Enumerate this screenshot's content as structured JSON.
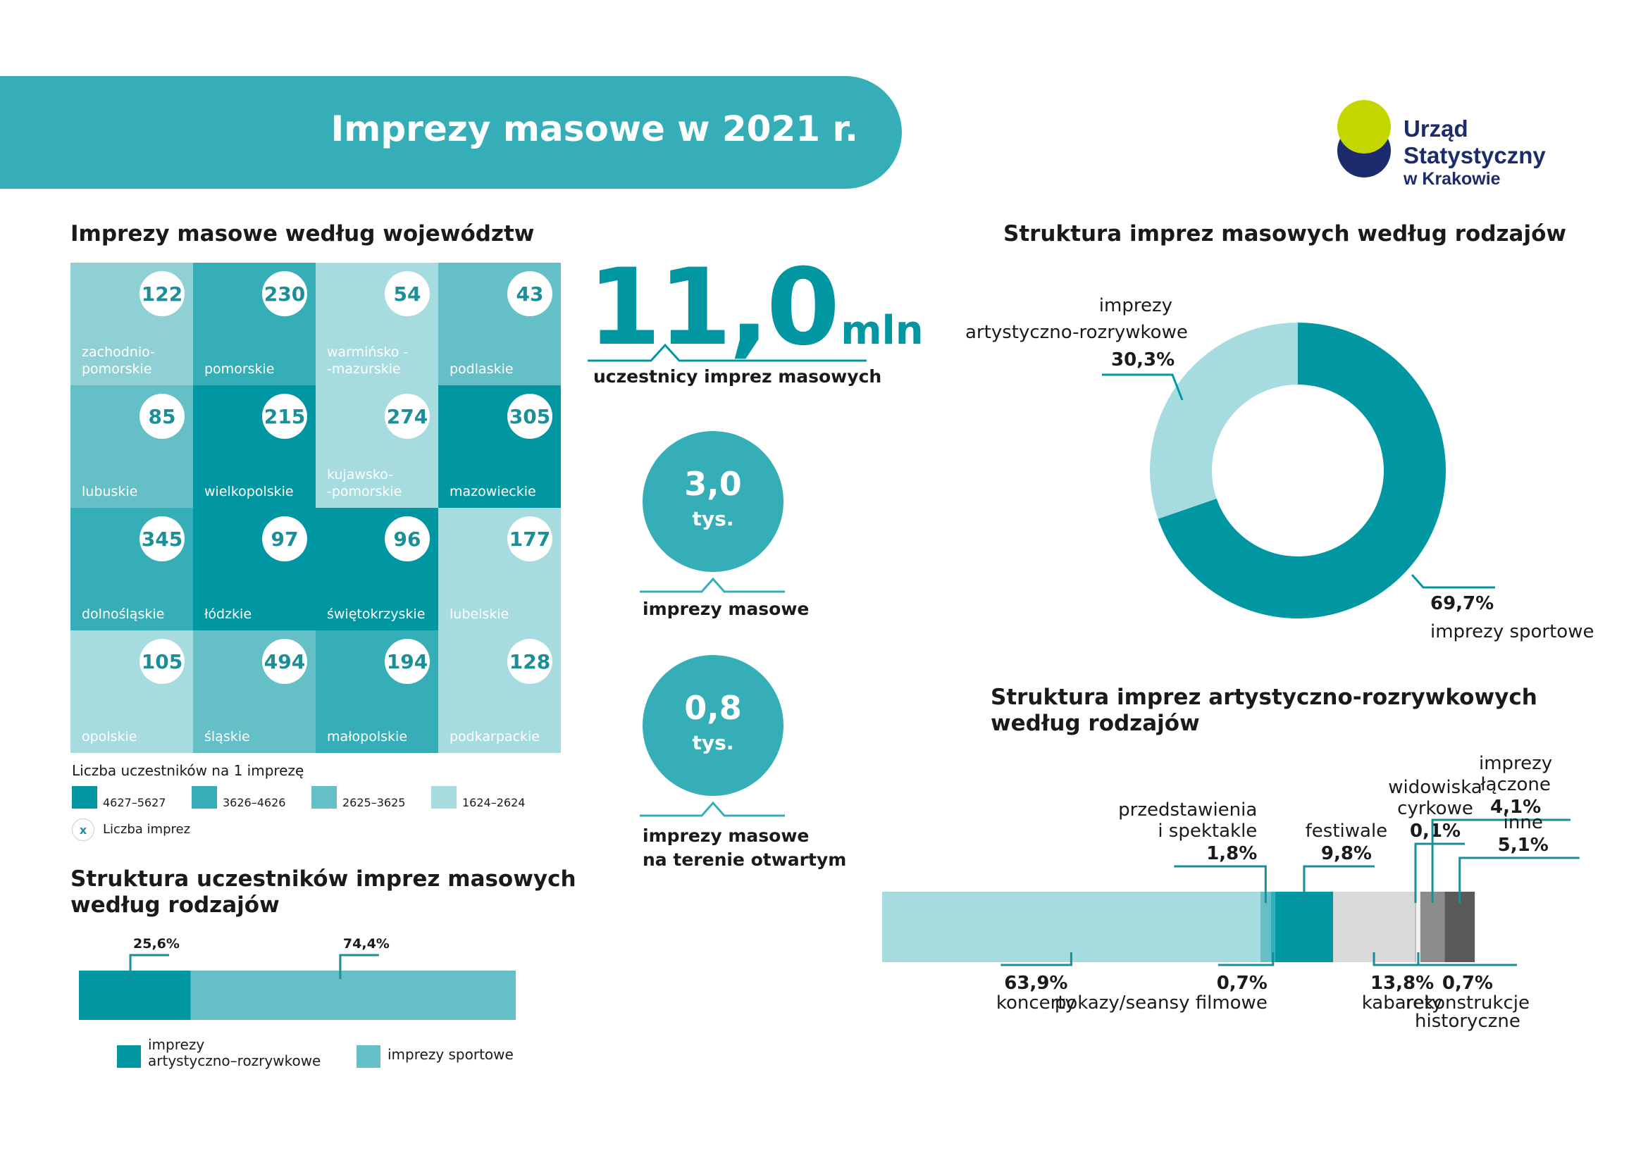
{
  "header": {
    "title": "Imprezy masowe w 2021 r."
  },
  "logo": {
    "line1": "Urząd Statystyczny",
    "line2": "w Krakowie",
    "colors": [
      "#c4d600",
      "#1b2b6b"
    ]
  },
  "map": {
    "title": "Imprezy masowe według województw",
    "tiles": [
      {
        "name": "zachodnio-\npomorskie",
        "value": "122",
        "color": "#8fd0d5"
      },
      {
        "name": "pomorskie",
        "value": "230",
        "color": "#36aeb7"
      },
      {
        "name": "warmińsko -\n-mazurskie",
        "value": "54",
        "color": "#a6dbdf"
      },
      {
        "name": "podlaskie",
        "value": "43",
        "color": "#64bfc6"
      },
      {
        "name": "lubuskie",
        "value": "85",
        "color": "#64bfc6"
      },
      {
        "name": "wielkopolskie",
        "value": "215",
        "color": "#0097a3"
      },
      {
        "name": "kujawsko-\n-pomorskie",
        "value": "274",
        "color": "#a6dbdf"
      },
      {
        "name": "mazowieckie",
        "value": "305",
        "color": "#0097a3"
      },
      {
        "name": "dolnośląskie",
        "value": "345",
        "color": "#36aeb7"
      },
      {
        "name": "łódzkie",
        "value": "97",
        "color": "#0097a3"
      },
      {
        "name": "świętokrzyskie",
        "value": "96",
        "color": "#0097a3"
      },
      {
        "name": "lubelskie",
        "value": "177",
        "color": "#a6dbdf"
      },
      {
        "name": "opolskie",
        "value": "105",
        "color": "#a6dbdf"
      },
      {
        "name": "śląskie",
        "value": "494",
        "color": "#64bfc6"
      },
      {
        "name": "małopolskie",
        "value": "194",
        "color": "#36aeb7"
      },
      {
        "name": "podkarpackie",
        "value": "128",
        "color": "#a6dbdf"
      }
    ],
    "legend_title": "Liczba uczestników na 1 imprezę",
    "legend": [
      {
        "label": "4627–5627",
        "color": "#0097a3"
      },
      {
        "label": "3626–4626",
        "color": "#36aeb7"
      },
      {
        "label": "2625–3625",
        "color": "#64bfc6"
      },
      {
        "label": "1624–2624",
        "color": "#a6dbdf"
      }
    ],
    "count_symbol": "x",
    "count_label": "Liczba imprez"
  },
  "kpi": {
    "participants_value": "11,0",
    "participants_unit": "mln",
    "participants_caption": "uczestnicy imprez masowych",
    "events_value": "3,0",
    "events_unit": "tys.",
    "events_caption": "imprezy masowe",
    "open_value": "0,8",
    "open_unit": "tys.",
    "open_caption_1": "imprezy masowe",
    "open_caption_2": "na terenie otwartym"
  },
  "chart_data": [
    {
      "type": "pie",
      "title": "Struktura imprez masowych według rodzajów",
      "slices": [
        {
          "name_1": "imprezy",
          "name_2": "artystyczno-rozrywkowe",
          "value": 30.3,
          "label": "30,3%",
          "color": "#a6dbdf"
        },
        {
          "name_1": "imprezy sportowe",
          "name_2": "",
          "value": 69.7,
          "label": "69,7%",
          "color": "#0097a3"
        }
      ]
    },
    {
      "type": "bar",
      "title_1": "Struktura uczestników imprez masowych",
      "title_2": "według rodzajów",
      "stacked": true,
      "segments": [
        {
          "name_1": "imprezy",
          "name_2": "artystyczno–rozrywkowe",
          "value": 25.6,
          "label": "25,6%",
          "color": "#0097a3"
        },
        {
          "name_1": "imprezy sportowe",
          "name_2": "",
          "value": 74.4,
          "label": "74,4%",
          "color": "#64bfc6"
        }
      ]
    },
    {
      "type": "bar",
      "title_1": "Struktura imprez artystyczno-rozrywkowych",
      "title_2": "według rodzajów",
      "stacked": true,
      "segments": [
        {
          "name": [
            "koncerty"
          ],
          "value": 63.9,
          "label": "63,9%",
          "color": "#a6dbdf"
        },
        {
          "name": [
            "przedstawienia",
            "i spektakle"
          ],
          "value": 1.8,
          "label": "1,8%",
          "color": "#64bfc6"
        },
        {
          "name": [
            "pokazy/seansy filmowe"
          ],
          "value": 0.7,
          "label": "0,7%",
          "color": "#36aeb7"
        },
        {
          "name": [
            "festiwale"
          ],
          "value": 9.8,
          "label": "9,8%",
          "color": "#0097a3"
        },
        {
          "name": [
            "kabarety"
          ],
          "value": 13.8,
          "label": "13,8%",
          "color": "#d9d9d9"
        },
        {
          "name": [
            "widowiska",
            "cyrkowe"
          ],
          "value": 0.1,
          "label": "0,1%",
          "color": "#bfbfbf"
        },
        {
          "name": [
            "rekonstrukcje",
            "historyczne"
          ],
          "value": 0.7,
          "label": "0,7%",
          "color": "#f2f2f2"
        },
        {
          "name": [
            "imprezy",
            "łączone"
          ],
          "value": 4.1,
          "label": "4,1%",
          "color": "#8c8c8c"
        },
        {
          "name": [
            "inne"
          ],
          "value": 5.1,
          "label": "5,1%",
          "color": "#5a5a5a"
        }
      ]
    }
  ]
}
